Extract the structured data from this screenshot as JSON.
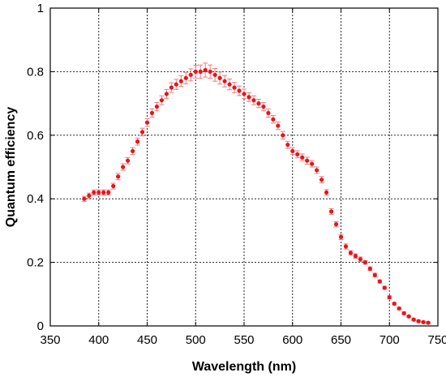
{
  "chart_data": {
    "type": "scatter",
    "title": "",
    "xlabel": "Wavelength (nm)",
    "ylabel": "Quantum efficiency",
    "xlim": [
      350,
      750
    ],
    "ylim": [
      0,
      1
    ],
    "x_ticks": [
      350,
      400,
      450,
      500,
      550,
      600,
      650,
      700,
      750
    ],
    "y_ticks": [
      0,
      0.2,
      0.4,
      0.6,
      0.8,
      1
    ],
    "x_tick_labels": [
      "350",
      "400",
      "450",
      "500",
      "550",
      "600",
      "650",
      "700",
      "750"
    ],
    "y_tick_labels": [
      "0",
      "0.2",
      "0.4",
      "0.6",
      "0.8",
      "1"
    ],
    "grid": true,
    "marker_color": "#e8141c",
    "errorbar_color": "#f07a7a",
    "series": [
      {
        "x": [
          385,
          390,
          395,
          400,
          405,
          410,
          415,
          420,
          425,
          430,
          435,
          440,
          445,
          450,
          455,
          460,
          465,
          470,
          475,
          480,
          485,
          490,
          495,
          500,
          505,
          510,
          515,
          520,
          525,
          530,
          535,
          540,
          545,
          550,
          555,
          560,
          565,
          570,
          575,
          580,
          585,
          590,
          595,
          600,
          605,
          610,
          615,
          620,
          625,
          630,
          635,
          640,
          645,
          650,
          655,
          660,
          665,
          670,
          675,
          680,
          685,
          690,
          695,
          700,
          705,
          710,
          715,
          720,
          725,
          730,
          735,
          740
        ],
        "y": [
          0.4,
          0.41,
          0.42,
          0.42,
          0.42,
          0.42,
          0.44,
          0.47,
          0.5,
          0.52,
          0.55,
          0.58,
          0.61,
          0.64,
          0.67,
          0.69,
          0.71,
          0.73,
          0.75,
          0.76,
          0.77,
          0.78,
          0.79,
          0.8,
          0.8,
          0.805,
          0.8,
          0.79,
          0.78,
          0.77,
          0.76,
          0.75,
          0.74,
          0.73,
          0.72,
          0.71,
          0.7,
          0.69,
          0.67,
          0.65,
          0.63,
          0.6,
          0.57,
          0.55,
          0.54,
          0.53,
          0.52,
          0.51,
          0.49,
          0.46,
          0.42,
          0.36,
          0.32,
          0.28,
          0.25,
          0.23,
          0.22,
          0.21,
          0.2,
          0.18,
          0.16,
          0.14,
          0.12,
          0.09,
          0.07,
          0.055,
          0.04,
          0.03,
          0.02,
          0.015,
          0.012,
          0.01
        ],
        "err": [
          0.008,
          0.008,
          0.008,
          0.008,
          0.008,
          0.008,
          0.009,
          0.01,
          0.01,
          0.01,
          0.011,
          0.011,
          0.012,
          0.012,
          0.013,
          0.013,
          0.014,
          0.014,
          0.015,
          0.016,
          0.017,
          0.018,
          0.019,
          0.02,
          0.021,
          0.022,
          0.021,
          0.02,
          0.019,
          0.018,
          0.017,
          0.016,
          0.015,
          0.015,
          0.014,
          0.014,
          0.013,
          0.013,
          0.013,
          0.012,
          0.012,
          0.012,
          0.011,
          0.011,
          0.011,
          0.011,
          0.011,
          0.01,
          0.01,
          0.01,
          0.009,
          0.009,
          0.008,
          0.008,
          0.008,
          0.007,
          0.007,
          0.007,
          0.006,
          0.006,
          0.006,
          0.005,
          0.005,
          0.005,
          0.004,
          0.004,
          0.004,
          0.003,
          0.003,
          0.003,
          0.003,
          0.003
        ]
      }
    ]
  }
}
